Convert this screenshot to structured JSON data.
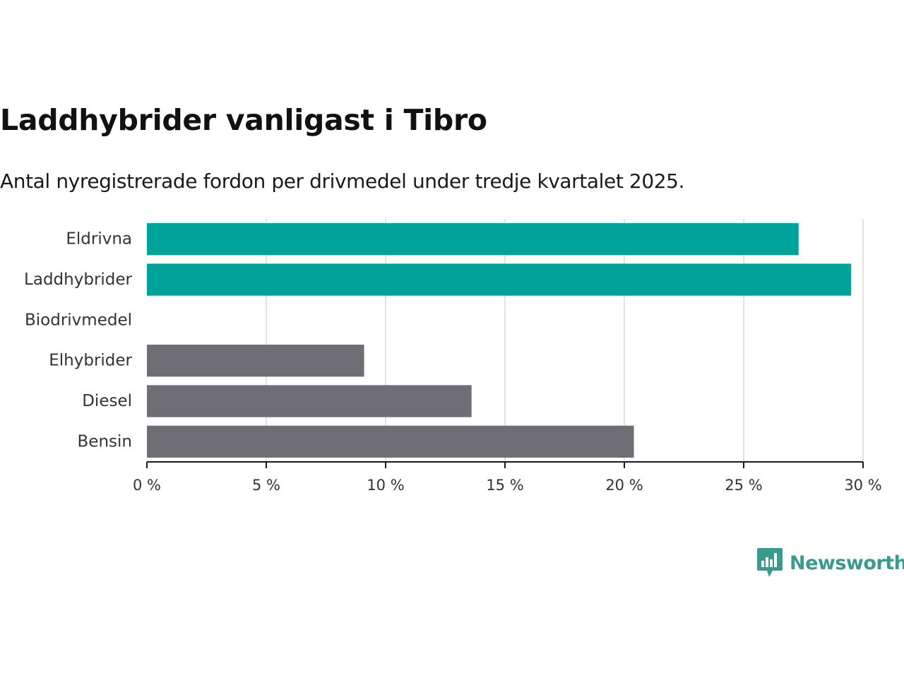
{
  "header": {
    "title": "Laddhybrider vanligast i Tibro",
    "subtitle": "Antal nyregistrerade fordon per drivmedel under tredje kvartalet 2025."
  },
  "brand": {
    "name": "Newsworthy",
    "color": "#3a9a8c",
    "icon": "bar-chart-speech-bubble-icon"
  },
  "chart_data": {
    "type": "bar",
    "orientation": "horizontal",
    "categories": [
      "Eldrivna",
      "Laddhybrider",
      "Biodrivmedel",
      "Elhybrider",
      "Diesel",
      "Bensin"
    ],
    "values": [
      27.3,
      29.5,
      0,
      9.1,
      13.6,
      20.4
    ],
    "colors": [
      "#00a39a",
      "#00a39a",
      "#00a39a",
      "#6f6e75",
      "#6f6e75",
      "#6f6e75"
    ],
    "x_ticks": [
      0,
      5,
      10,
      15,
      20,
      25,
      30
    ],
    "x_tick_labels": [
      "0 %",
      "5 %",
      "10 %",
      "15 %",
      "20 %",
      "25 %",
      "30 %"
    ],
    "xlim": [
      0,
      30
    ],
    "xlabel": "",
    "ylabel": "",
    "grid": true,
    "legend": "none"
  }
}
